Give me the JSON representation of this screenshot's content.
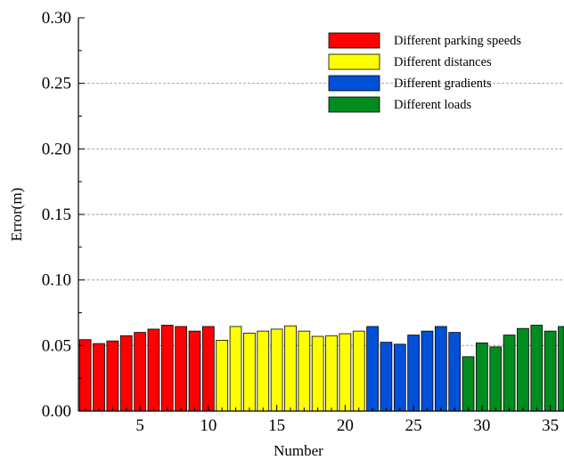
{
  "chart_data": {
    "type": "bar",
    "xlabel": "Number",
    "ylabel": "Error(m)",
    "ylim": [
      0,
      0.3
    ],
    "xlim": [
      0.5,
      36
    ],
    "y_ticks": [
      "0.00",
      "0.05",
      "0.10",
      "0.15",
      "0.20",
      "0.25",
      "0.30"
    ],
    "x_ticks": [
      "5",
      "10",
      "15",
      "20",
      "25",
      "30",
      "35"
    ],
    "grid": "horizontal dashed",
    "legend_position": "top-right",
    "series": [
      {
        "name": "Different parking speeds",
        "color": "#ff0000",
        "x": [
          1,
          2,
          3,
          4,
          5,
          6,
          7,
          8,
          9,
          10
        ],
        "values": [
          0.0545,
          0.0515,
          0.0535,
          0.0575,
          0.06,
          0.0625,
          0.0655,
          0.0645,
          0.061,
          0.0645
        ]
      },
      {
        "name": "Different distances",
        "color": "#ffff00",
        "x": [
          11,
          12,
          13,
          14,
          15,
          16,
          17,
          18,
          19,
          20,
          21
        ],
        "values": [
          0.054,
          0.0645,
          0.0595,
          0.061,
          0.0625,
          0.065,
          0.061,
          0.057,
          0.0575,
          0.059,
          0.061
        ]
      },
      {
        "name": "Different gradients",
        "color": "#0050d8",
        "x": [
          22,
          23,
          24,
          25,
          26,
          27,
          28
        ],
        "values": [
          0.0645,
          0.0525,
          0.051,
          0.058,
          0.061,
          0.0645,
          0.06
        ]
      },
      {
        "name": "Different loads",
        "color": "#008c1e",
        "x": [
          29,
          30,
          31,
          32,
          33,
          34,
          35,
          36
        ],
        "values": [
          0.0415,
          0.052,
          0.049,
          0.058,
          0.063,
          0.0655,
          0.061,
          0.0645
        ]
      }
    ]
  }
}
